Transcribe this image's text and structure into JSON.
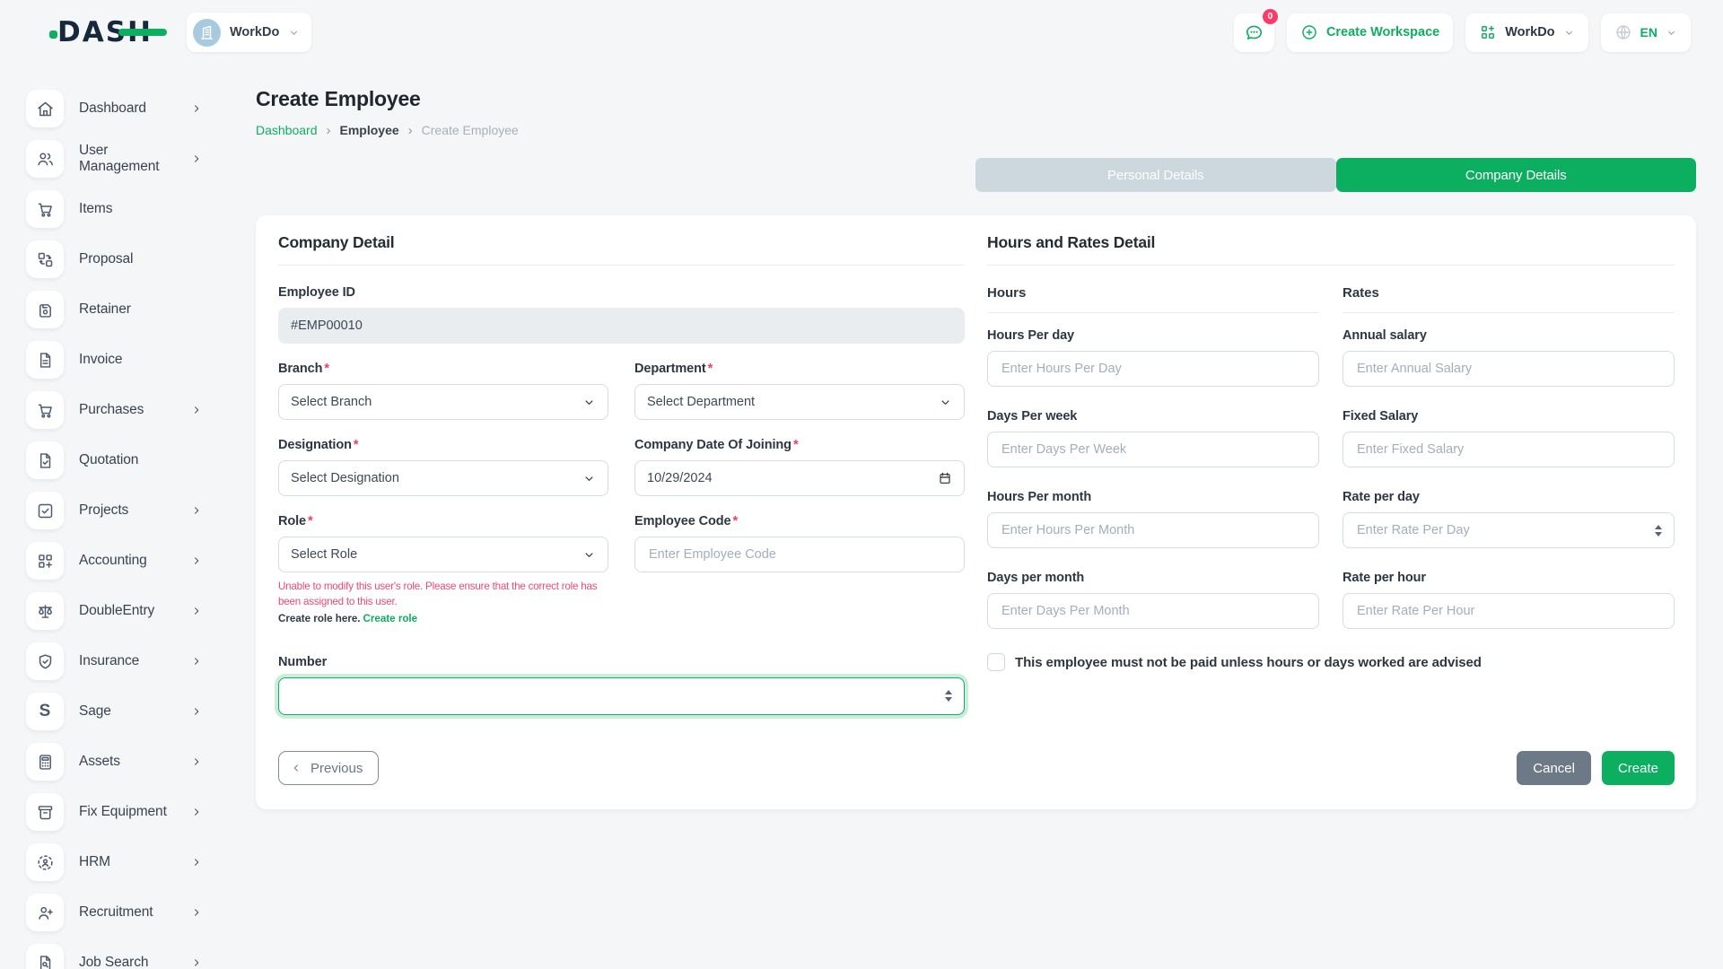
{
  "brand": {
    "name": "DASH"
  },
  "topbar": {
    "workspace": {
      "label": "WorkDo"
    },
    "messages": {
      "badge_count": "0"
    },
    "create_workspace_label": "Create Workspace",
    "app_menu_label": "WorkDo",
    "language": {
      "code": "EN"
    }
  },
  "sidebar": {
    "items": [
      {
        "label": "Dashboard",
        "icon": "home",
        "chevron": true
      },
      {
        "label": "User Management",
        "icon": "users",
        "chevron": true
      },
      {
        "label": "Items",
        "icon": "cart",
        "chevron": false
      },
      {
        "label": "Proposal",
        "icon": "swap-squares",
        "chevron": false
      },
      {
        "label": "Retainer",
        "icon": "save",
        "chevron": false
      },
      {
        "label": "Invoice",
        "icon": "file-text",
        "chevron": false
      },
      {
        "label": "Purchases",
        "icon": "cart",
        "chevron": true
      },
      {
        "label": "Quotation",
        "icon": "file-check",
        "chevron": false
      },
      {
        "label": "Projects",
        "icon": "check-square",
        "chevron": true
      },
      {
        "label": "Accounting",
        "icon": "grid-plus",
        "chevron": true
      },
      {
        "label": "DoubleEntry",
        "icon": "scales",
        "chevron": true
      },
      {
        "label": "Insurance",
        "icon": "shield-check",
        "chevron": true
      },
      {
        "label": "Sage",
        "icon": "sage",
        "chevron": true
      },
      {
        "label": "Assets",
        "icon": "calculator",
        "chevron": true
      },
      {
        "label": "Fix Equipment",
        "icon": "archive",
        "chevron": true
      },
      {
        "label": "HRM",
        "icon": "person-target",
        "chevron": true
      },
      {
        "label": "Recruitment",
        "icon": "user-plus",
        "chevron": true
      },
      {
        "label": "Job Search",
        "icon": "file-search",
        "chevron": true
      }
    ]
  },
  "page": {
    "title": "Create Employee",
    "breadcrumb": [
      {
        "label": "Dashboard",
        "type": "link"
      },
      {
        "label": "Employee",
        "type": "mid"
      },
      {
        "label": "Create Employee",
        "type": "muted"
      }
    ]
  },
  "tabs": {
    "personal": "Personal Details",
    "company": "Company Details"
  },
  "company_detail": {
    "title": "Company Detail",
    "employee_id": {
      "label": "Employee ID",
      "value": "#EMP00010"
    },
    "branch": {
      "label": "Branch",
      "value": "Select Branch"
    },
    "department": {
      "label": "Department",
      "value": "Select Department"
    },
    "designation": {
      "label": "Designation",
      "value": "Select Designation"
    },
    "joining_date": {
      "label": "Company Date Of Joining",
      "value": "10/29/2024"
    },
    "role": {
      "label": "Role",
      "value": "Select Role",
      "warning": "Unable to modify this user's role. Please ensure that the correct role has been assigned to this user.",
      "helper_text": "Create role here.",
      "helper_link": "Create role"
    },
    "employee_code": {
      "label": "Employee Code",
      "placeholder": "Enter Employee Code"
    },
    "number": {
      "label": "Number",
      "value": ""
    }
  },
  "hours_rates": {
    "title": "Hours and Rates Detail",
    "hours_heading": "Hours",
    "rates_heading": "Rates",
    "hours_fields": [
      {
        "label": "Hours Per day",
        "placeholder": "Enter Hours Per Day"
      },
      {
        "label": "Days Per week",
        "placeholder": "Enter Days Per Week"
      },
      {
        "label": "Hours Per month",
        "placeholder": "Enter Hours Per Month"
      },
      {
        "label": "Days per month",
        "placeholder": "Enter Days Per Month"
      }
    ],
    "rates_fields": [
      {
        "label": "Annual salary",
        "placeholder": "Enter Annual Salary"
      },
      {
        "label": "Fixed Salary",
        "placeholder": "Enter Fixed Salary"
      },
      {
        "label": "Rate per day",
        "placeholder": "Enter Rate Per Day",
        "spinner": true
      },
      {
        "label": "Rate per hour",
        "placeholder": "Enter Rate Per Hour"
      }
    ],
    "checkbox_label": "This employee must not be paid unless hours or days worked are advised"
  },
  "actions": {
    "previous": "Previous",
    "cancel": "Cancel",
    "create": "Create"
  },
  "colors": {
    "primary_green": "#0caf60",
    "tab_inactive": "#ccd7de",
    "danger_pink": "#f2486f",
    "badge_pink": "#fb3a68",
    "dark_navy": "#16283c"
  }
}
